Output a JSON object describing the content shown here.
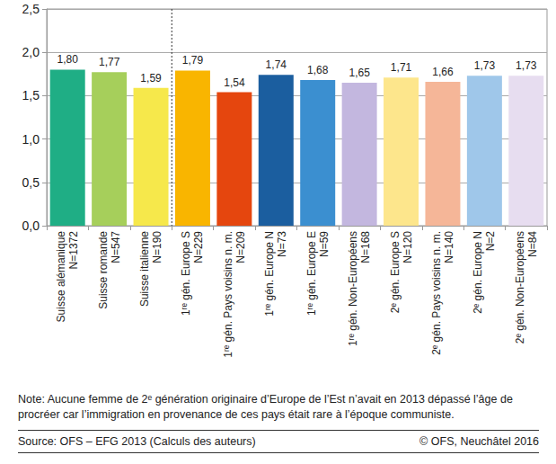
{
  "chart_data": {
    "type": "bar",
    "categories": [
      "Suisse alémanique\nN=1372",
      "Suisse romande\nN=547",
      "Suisse italienne\nN=190",
      "1ʳᵉ gén. Europe S\nN=229",
      "1ʳᵉ gén. Pays voisins n. m.\nN=209",
      "1ʳᵉ gén. Europe N\nN=73",
      "1ʳᵉ gén. Europe E\nN=59",
      "1ʳᵉ gén. Non-Européens\nN=168",
      "2ᵉ gén. Europe S\nN=120",
      "2ᵉ gén. Pays voisins n. m.\nN=140",
      "2ᵉ gén. Europe N\nN=2",
      "2ᵉ gén. Non-Européens\nN=84"
    ],
    "values": [
      1.8,
      1.77,
      1.59,
      1.79,
      1.54,
      1.74,
      1.68,
      1.65,
      1.71,
      1.66,
      1.73,
      1.73
    ],
    "value_labels": [
      "1,80",
      "1,77",
      "1,59",
      "1,79",
      "1,54",
      "1,74",
      "1,68",
      "1,65",
      "1,71",
      "1,66",
      "1,73",
      "1,73"
    ],
    "colors": [
      "#1fae85",
      "#a6cf5b",
      "#f6e84b",
      "#f9b500",
      "#e5460e",
      "#1b5e9f",
      "#3b8fd0",
      "#c3b7df",
      "#fde68c",
      "#f5b698",
      "#9fc7ea",
      "#e7ddf0"
    ],
    "ylim": [
      0,
      2.5
    ],
    "yticks": [
      {
        "value": 0,
        "label": "0,0"
      },
      {
        "value": 0.5,
        "label": "0,5"
      },
      {
        "value": 1,
        "label": "1,0"
      },
      {
        "value": 1.5,
        "label": "1,5"
      },
      {
        "value": 2,
        "label": "2,0"
      },
      {
        "value": 2.5,
        "label": "2,5"
      }
    ],
    "grid": true,
    "data_labels": true,
    "note": "Note: Aucune femme de 2ᵉ génération originaire d’Europe de l’Est n’avait en 2013 dépassé l’âge de procréer car l’immigration en provenance de ces pays était rare à l’époque communiste.",
    "source": "Source: OFS – EFG 2013 (Calculs des auteurs)",
    "copyright": "© OFS, Neuchâtel 2016"
  }
}
